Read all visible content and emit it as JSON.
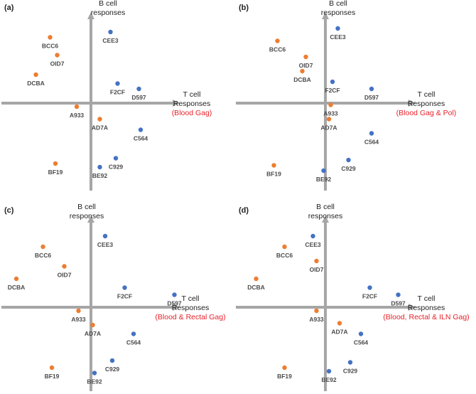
{
  "colors": {
    "axis": "#a6a6a6",
    "group_orange": "#ed7d31",
    "group_blue": "#4472c4",
    "condition_text": "#e8212a",
    "text": "#222222",
    "point_label": "#4a4a4a"
  },
  "chart_data": [
    {
      "type": "scatter",
      "panel": "(a)",
      "ylabel": [
        "B cell",
        "responses"
      ],
      "xlabel": [
        "T cell",
        "Responses"
      ],
      "condition": "(Blood Gag)",
      "points": [
        {
          "label": "BCC6",
          "group": "orange",
          "x": -2.3,
          "y": 3.7
        },
        {
          "label": "OID7",
          "group": "orange",
          "x": -1.9,
          "y": 2.7
        },
        {
          "label": "DCBA",
          "group": "orange",
          "x": -3.1,
          "y": 1.6
        },
        {
          "label": "CEE3",
          "group": "blue",
          "x": 1.1,
          "y": 4.0
        },
        {
          "label": "F2CF",
          "group": "blue",
          "x": 1.5,
          "y": 1.1
        },
        {
          "label": "D597",
          "group": "blue",
          "x": 2.7,
          "y": 0.8
        },
        {
          "label": "A933",
          "group": "orange",
          "x": -0.8,
          "y": -0.2
        },
        {
          "label": "AD7A",
          "group": "orange",
          "x": 0.5,
          "y": -0.9
        },
        {
          "label": "C564",
          "group": "blue",
          "x": 2.8,
          "y": -1.5
        },
        {
          "label": "BF19",
          "group": "orange",
          "x": -2.0,
          "y": -3.4
        },
        {
          "label": "C929",
          "group": "blue",
          "x": 1.4,
          "y": -3.1
        },
        {
          "label": "BE92",
          "group": "blue",
          "x": 0.5,
          "y": -3.6
        }
      ]
    },
    {
      "type": "scatter",
      "panel": "(b)",
      "ylabel": [
        "B cell",
        "responses"
      ],
      "xlabel": [
        "T cell",
        "Responses"
      ],
      "condition": "(Blood Gag & Pol)",
      "points": [
        {
          "label": "BCC6",
          "group": "orange",
          "x": -2.7,
          "y": 3.5
        },
        {
          "label": "CEE3",
          "group": "blue",
          "x": 0.7,
          "y": 4.2
        },
        {
          "label": "OID7",
          "group": "orange",
          "x": -1.1,
          "y": 2.6
        },
        {
          "label": "DCBA",
          "group": "orange",
          "x": -1.3,
          "y": 1.8
        },
        {
          "label": "F2CF",
          "group": "blue",
          "x": 0.4,
          "y": 1.2
        },
        {
          "label": "D597",
          "group": "blue",
          "x": 2.6,
          "y": 0.8
        },
        {
          "label": "A933",
          "group": "orange",
          "x": 0.3,
          "y": -0.1
        },
        {
          "label": "AD7A",
          "group": "orange",
          "x": 0.2,
          "y": -0.9
        },
        {
          "label": "C564",
          "group": "blue",
          "x": 2.6,
          "y": -1.7
        },
        {
          "label": "C929",
          "group": "blue",
          "x": 1.3,
          "y": -3.2
        },
        {
          "label": "BF19",
          "group": "orange",
          "x": -2.9,
          "y": -3.5
        },
        {
          "label": "BE92",
          "group": "blue",
          "x": -0.1,
          "y": -3.8
        }
      ]
    },
    {
      "type": "scatter",
      "panel": "(c)",
      "ylabel": [
        "B cell",
        "responses"
      ],
      "xlabel": [
        "T cell",
        "Responses"
      ],
      "condition": "(Blood & Rectal Gag)",
      "points": [
        {
          "label": "CEE3",
          "group": "blue",
          "x": 0.8,
          "y": 4.0
        },
        {
          "label": "BCC6",
          "group": "orange",
          "x": -2.7,
          "y": 3.4
        },
        {
          "label": "OID7",
          "group": "orange",
          "x": -1.5,
          "y": 2.3
        },
        {
          "label": "DCBA",
          "group": "orange",
          "x": -4.2,
          "y": 1.6
        },
        {
          "label": "F2CF",
          "group": "blue",
          "x": 1.9,
          "y": 1.1
        },
        {
          "label": "D597",
          "group": "blue",
          "x": 4.7,
          "y": 0.7
        },
        {
          "label": "A933",
          "group": "orange",
          "x": -0.7,
          "y": -0.2
        },
        {
          "label": "AD7A",
          "group": "orange",
          "x": 0.1,
          "y": -1.0
        },
        {
          "label": "C564",
          "group": "blue",
          "x": 2.4,
          "y": -1.5
        },
        {
          "label": "C929",
          "group": "blue",
          "x": 1.2,
          "y": -3.0
        },
        {
          "label": "BF19",
          "group": "orange",
          "x": -2.2,
          "y": -3.4
        },
        {
          "label": "BE92",
          "group": "blue",
          "x": 0.2,
          "y": -3.7
        }
      ]
    },
    {
      "type": "scatter",
      "panel": "(d)",
      "ylabel": [
        "B cell",
        "responses"
      ],
      "xlabel": [
        "T cell",
        "Responses"
      ],
      "condition": "(Blood, Rectal & ILN Gag)",
      "points": [
        {
          "label": "CEE3",
          "group": "blue",
          "x": -0.7,
          "y": 4.0
        },
        {
          "label": "BCC6",
          "group": "orange",
          "x": -2.3,
          "y": 3.4
        },
        {
          "label": "OID7",
          "group": "orange",
          "x": -0.5,
          "y": 2.6
        },
        {
          "label": "DCBA",
          "group": "orange",
          "x": -3.9,
          "y": 1.6
        },
        {
          "label": "F2CF",
          "group": "blue",
          "x": 2.5,
          "y": 1.1
        },
        {
          "label": "D597",
          "group": "blue",
          "x": 4.1,
          "y": 0.7
        },
        {
          "label": "A933",
          "group": "orange",
          "x": -0.5,
          "y": -0.2
        },
        {
          "label": "AD7A",
          "group": "orange",
          "x": 0.8,
          "y": -0.9
        },
        {
          "label": "C564",
          "group": "blue",
          "x": 2.0,
          "y": -1.5
        },
        {
          "label": "C929",
          "group": "blue",
          "x": 1.4,
          "y": -3.1
        },
        {
          "label": "BF19",
          "group": "orange",
          "x": -2.3,
          "y": -3.4
        },
        {
          "label": "BE92",
          "group": "blue",
          "x": 0.2,
          "y": -3.6
        }
      ]
    }
  ]
}
